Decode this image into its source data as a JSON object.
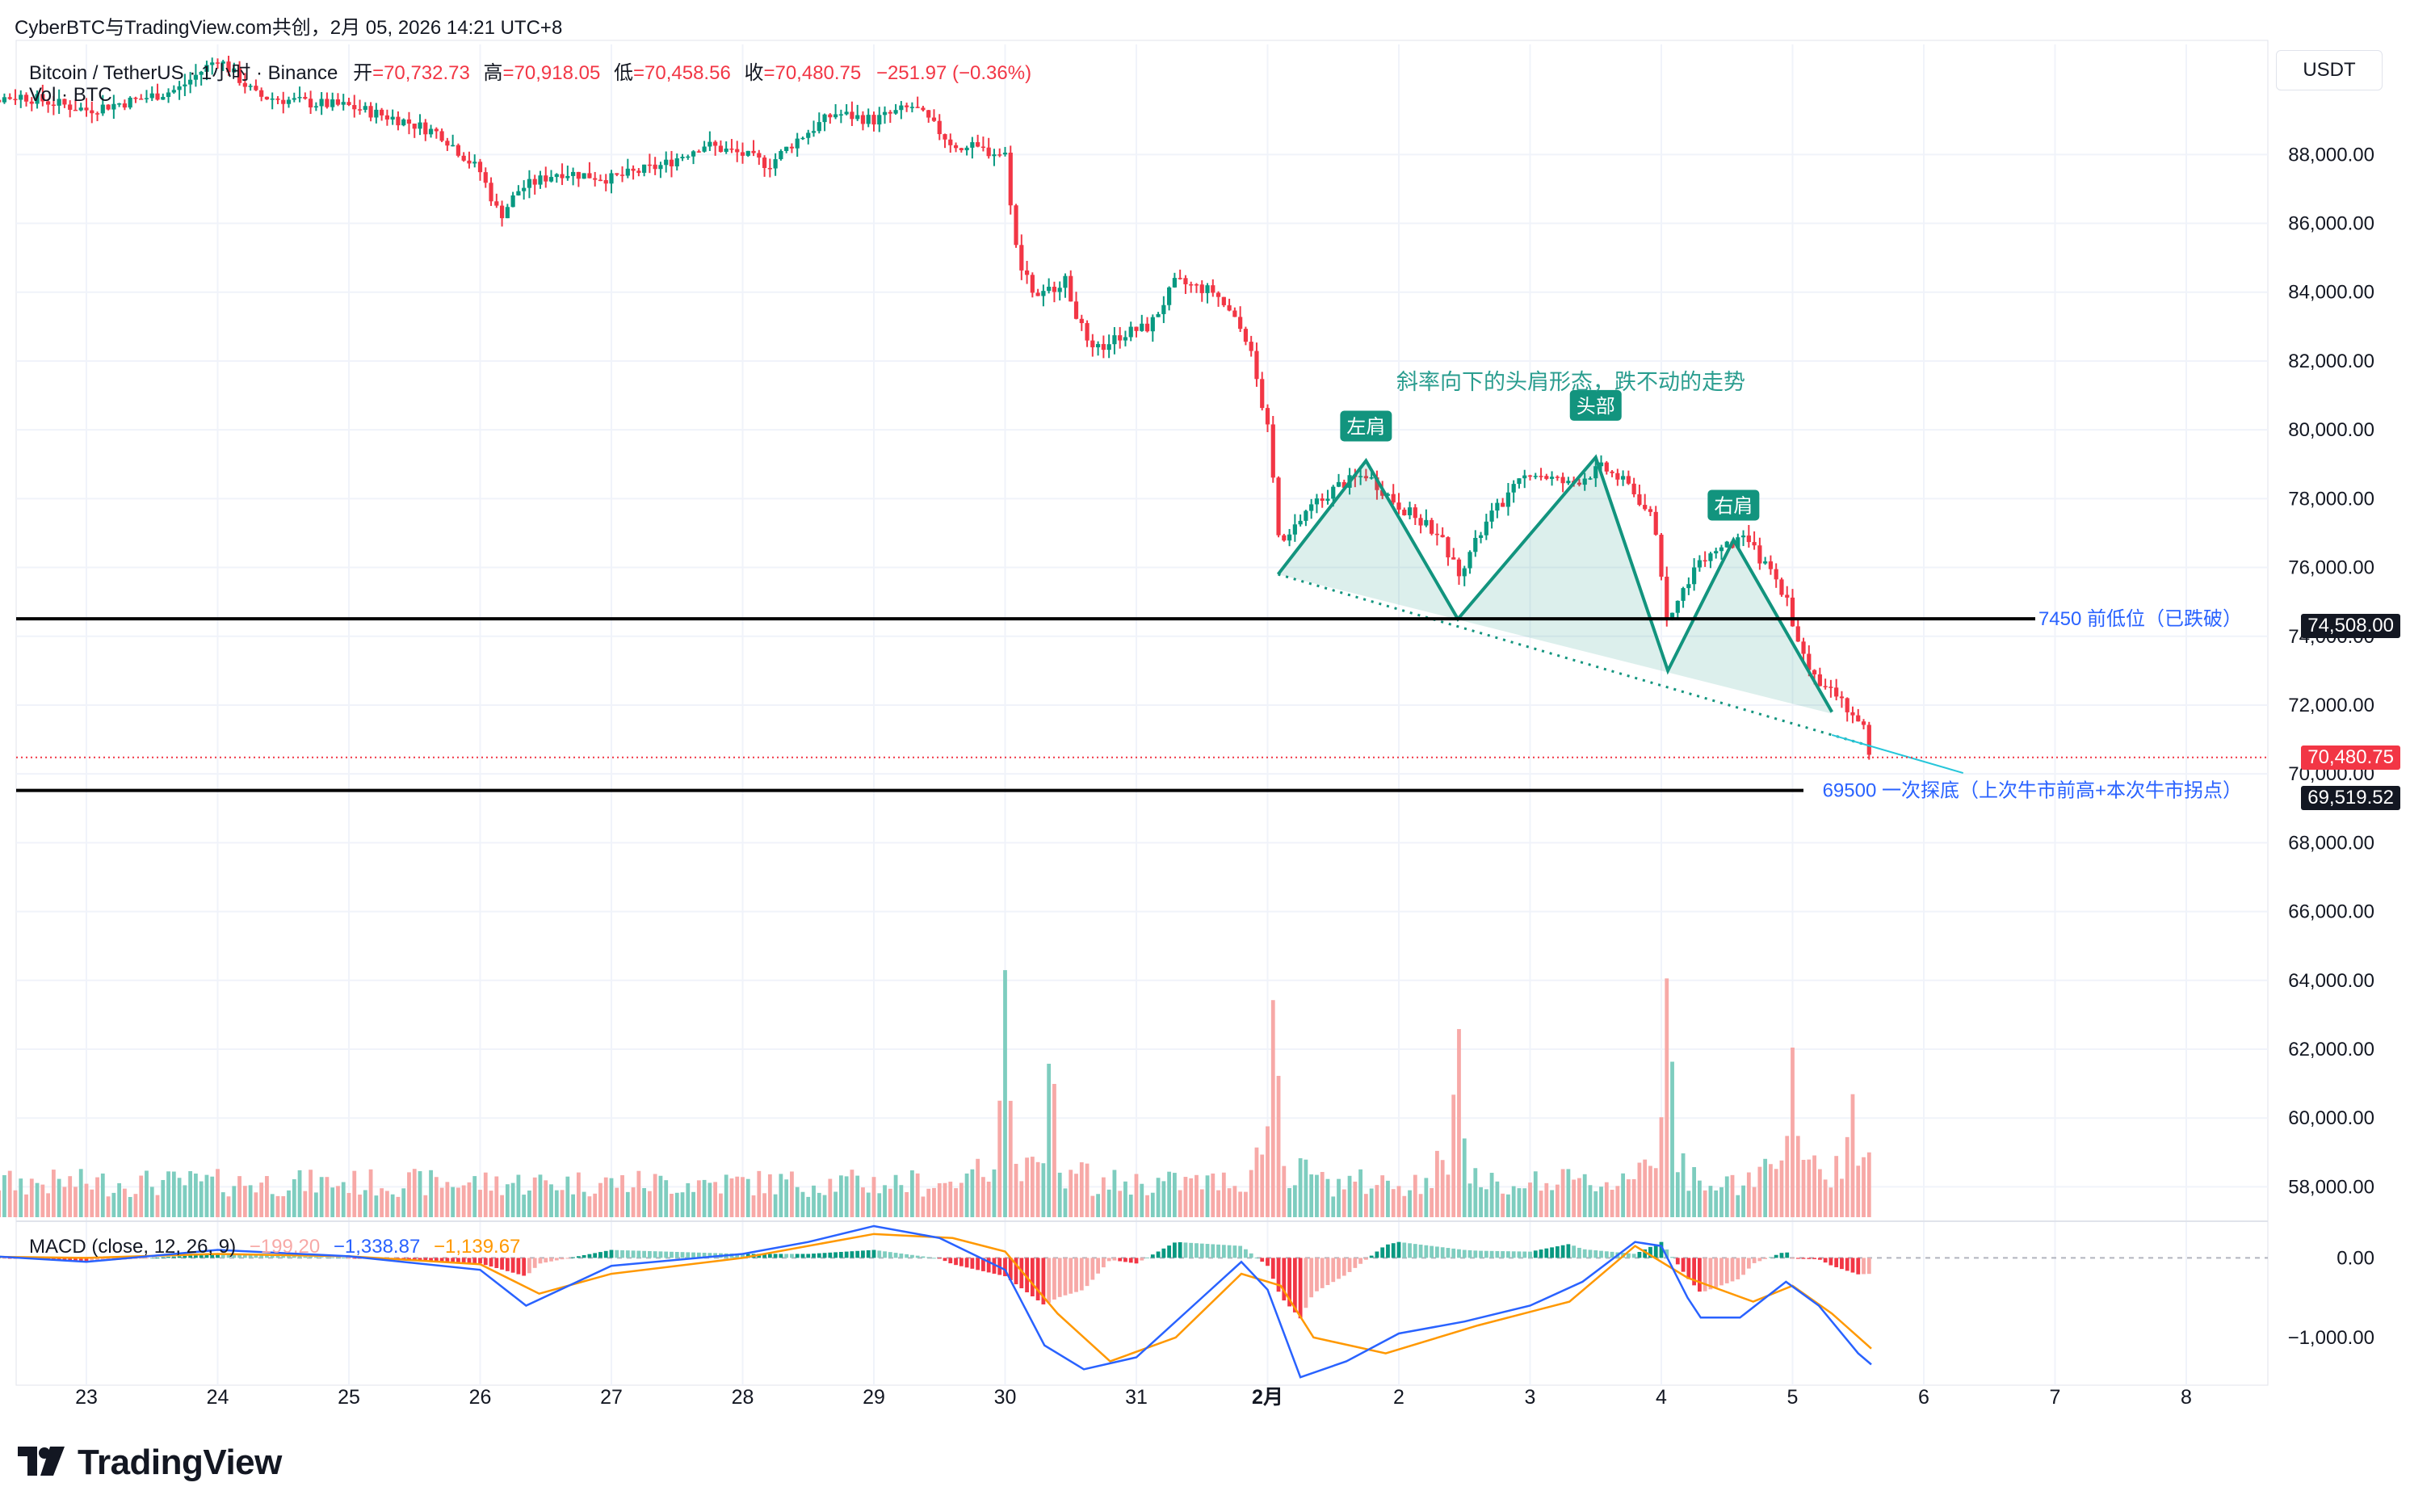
{
  "header": {
    "publisher": "CyberBTC与TradingView.com共创，2月 05, 2026 14:21 UTC+8"
  },
  "legend": {
    "symbol": "Bitcoin / TetherUS · 1小时 · Binance",
    "open_label": "开",
    "open_value": "=70,732.73",
    "high_label": "高",
    "high_value": "=70,918.05",
    "low_label": "低",
    "low_value": "=70,458.56",
    "close_label": "收",
    "close_value": "=70,480.75",
    "change": "−251.97 (−0.36%)",
    "volume_label": "Vol · BTC"
  },
  "currency": "USDT",
  "colors": {
    "up": "#089981",
    "down": "#f23645",
    "up_vol": "#7ecdbf",
    "down_vol": "#f7a9a7",
    "macd_line": "#2962ff",
    "signal_line": "#ff9800",
    "pattern": "#12947e",
    "annotation": "#2a9d8f",
    "level_text": "#2962ff",
    "last_price": "#f23645"
  },
  "chart_data": {
    "type": "candlestick",
    "symbol": "BTCUSDT",
    "interval": "1h",
    "y_axis": {
      "ylim": [
        57000,
        91200
      ],
      "ticks": [
        58000,
        60000,
        62000,
        64000,
        66000,
        68000,
        70000,
        72000,
        74000,
        76000,
        78000,
        80000,
        82000,
        84000,
        86000,
        88000
      ],
      "tick_labels": [
        "58,000.00",
        "60,000.00",
        "62,000.00",
        "64,000.00",
        "66,000.00",
        "68,000.00",
        "70,000.00",
        "72,000.00",
        "74,000.00",
        "76,000.00",
        "78,000.00",
        "80,000.00",
        "82,000.00",
        "84,000.00",
        "86,000.00",
        "88,000.00"
      ]
    },
    "x_axis": {
      "labels": [
        "23",
        "24",
        "25",
        "26",
        "27",
        "28",
        "29",
        "30",
        "31",
        "2月",
        "2",
        "3",
        "4",
        "5",
        "6",
        "7",
        "8"
      ],
      "bold_label": "2月"
    },
    "price_path": [
      [
        22.0,
        89500
      ],
      [
        22.5,
        89700
      ],
      [
        23.0,
        89300
      ],
      [
        23.4,
        89600
      ],
      [
        23.7,
        89900
      ],
      [
        24.0,
        90800
      ],
      [
        24.3,
        89700
      ],
      [
        24.7,
        89500
      ],
      [
        25.0,
        89400
      ],
      [
        25.4,
        89000
      ],
      [
        25.7,
        88600
      ],
      [
        26.0,
        87500
      ],
      [
        26.15,
        86200
      ],
      [
        26.3,
        87000
      ],
      [
        26.6,
        87500
      ],
      [
        27.0,
        87300
      ],
      [
        27.4,
        87700
      ],
      [
        27.7,
        88300
      ],
      [
        28.0,
        88000
      ],
      [
        28.2,
        87700
      ],
      [
        28.4,
        88400
      ],
      [
        28.7,
        89200
      ],
      [
        29.0,
        89000
      ],
      [
        29.3,
        89400
      ],
      [
        29.6,
        88300
      ],
      [
        30.0,
        88000
      ],
      [
        30.1,
        84800
      ],
      [
        30.25,
        83800
      ],
      [
        30.45,
        84400
      ],
      [
        30.65,
        82200
      ],
      [
        30.9,
        82800
      ],
      [
        31.1,
        83000
      ],
      [
        31.3,
        84300
      ],
      [
        31.6,
        84000
      ],
      [
        31.85,
        82600
      ],
      [
        32.0,
        80000
      ],
      [
        32.1,
        76500
      ],
      [
        32.3,
        77700
      ],
      [
        32.55,
        78400
      ],
      [
        32.75,
        78700
      ],
      [
        33.0,
        77800
      ],
      [
        33.3,
        77000
      ],
      [
        33.45,
        75800
      ],
      [
        33.7,
        77500
      ],
      [
        34.0,
        78800
      ],
      [
        34.3,
        78400
      ],
      [
        34.55,
        78900
      ],
      [
        34.75,
        78400
      ],
      [
        34.95,
        77300
      ],
      [
        35.05,
        74400
      ],
      [
        35.15,
        75200
      ],
      [
        35.3,
        76300
      ],
      [
        35.5,
        76600
      ],
      [
        35.65,
        76800
      ],
      [
        35.8,
        76000
      ],
      [
        35.95,
        75200
      ],
      [
        36.05,
        73600
      ],
      [
        36.2,
        72700
      ],
      [
        36.35,
        72200
      ],
      [
        36.45,
        71800
      ],
      [
        36.55,
        71200
      ],
      [
        36.6,
        70480
      ]
    ],
    "last_price": 70480.75,
    "volume_series": {
      "name": "Vol · BTC",
      "spikes": [
        {
          "x": 30.0,
          "label_value": 3.0
        },
        {
          "x": 30.35,
          "label_value": 2.4
        },
        {
          "x": 32.05,
          "label_value": 3.0
        },
        {
          "x": 33.45,
          "label_value": 2.6
        },
        {
          "x": 35.05,
          "label_value": 3.3
        },
        {
          "x": 36.0,
          "label_value": 2.1
        },
        {
          "x": 36.45,
          "label_value": 1.7
        }
      ]
    },
    "macd": {
      "label": "MACD (close, 12, 26, 9)",
      "histogram_value": "−199.20",
      "macd_value": "−1,338.87",
      "signal_value": "−1,139.67",
      "ticks": [
        0,
        -1000
      ],
      "tick_labels": [
        "0.00",
        "−1,000.00"
      ],
      "ylim": [
        -1600,
        420
      ],
      "macd_path": [
        [
          22.0,
          50
        ],
        [
          23.0,
          -50
        ],
        [
          24.0,
          100
        ],
        [
          25.0,
          20
        ],
        [
          26.0,
          -150
        ],
        [
          26.35,
          -600
        ],
        [
          27.0,
          -100
        ],
        [
          28.0,
          50
        ],
        [
          28.5,
          200
        ],
        [
          29.0,
          400
        ],
        [
          29.5,
          250
        ],
        [
          30.0,
          -150
        ],
        [
          30.3,
          -1100
        ],
        [
          30.6,
          -1400
        ],
        [
          31.0,
          -1250
        ],
        [
          31.5,
          -500
        ],
        [
          31.8,
          -50
        ],
        [
          32.0,
          -400
        ],
        [
          32.25,
          -1500
        ],
        [
          32.6,
          -1300
        ],
        [
          33.0,
          -950
        ],
        [
          33.5,
          -800
        ],
        [
          34.0,
          -600
        ],
        [
          34.4,
          -300
        ],
        [
          34.8,
          200
        ],
        [
          35.0,
          150
        ],
        [
          35.2,
          -500
        ],
        [
          35.3,
          -750
        ],
        [
          35.6,
          -750
        ],
        [
          35.95,
          -300
        ],
        [
          36.2,
          -600
        ],
        [
          36.5,
          -1200
        ],
        [
          36.6,
          -1340
        ]
      ],
      "signal_path": [
        [
          22.0,
          20
        ],
        [
          23.0,
          0
        ],
        [
          24.0,
          50
        ],
        [
          25.0,
          20
        ],
        [
          26.0,
          -80
        ],
        [
          26.45,
          -450
        ],
        [
          27.0,
          -200
        ],
        [
          28.0,
          0
        ],
        [
          29.0,
          300
        ],
        [
          29.6,
          250
        ],
        [
          30.0,
          80
        ],
        [
          30.4,
          -700
        ],
        [
          30.8,
          -1300
        ],
        [
          31.3,
          -1000
        ],
        [
          31.8,
          -200
        ],
        [
          32.1,
          -350
        ],
        [
          32.35,
          -1000
        ],
        [
          32.9,
          -1200
        ],
        [
          33.6,
          -850
        ],
        [
          34.3,
          -550
        ],
        [
          34.8,
          150
        ],
        [
          35.2,
          -250
        ],
        [
          35.7,
          -550
        ],
        [
          36.0,
          -350
        ],
        [
          36.3,
          -700
        ],
        [
          36.6,
          -1140
        ]
      ]
    },
    "annotations": {
      "title": "斜率向下的头肩形态，跌不动的走势",
      "left_shoulder": "左肩",
      "head": "头部",
      "right_shoulder": "右肩",
      "head_shoulders_points": [
        [
          32.08,
          75800
        ],
        [
          32.75,
          79100
        ],
        [
          33.45,
          74500
        ],
        [
          34.5,
          79200
        ],
        [
          35.05,
          73000
        ],
        [
          35.55,
          76800
        ],
        [
          36.3,
          71800
        ]
      ],
      "neckline": [
        [
          32.08,
          75800
        ],
        [
          36.6,
          70800
        ]
      ],
      "levels": [
        {
          "price": 74508,
          "price_label": "74,508.00",
          "text": "7450 前低位（已跌破）"
        },
        {
          "price": 69519.52,
          "price_label": "69,519.52",
          "text": "69500 一次探底（上次牛市前高+本次牛市拐点）"
        }
      ]
    }
  },
  "footer": {
    "brand": "TradingView"
  }
}
